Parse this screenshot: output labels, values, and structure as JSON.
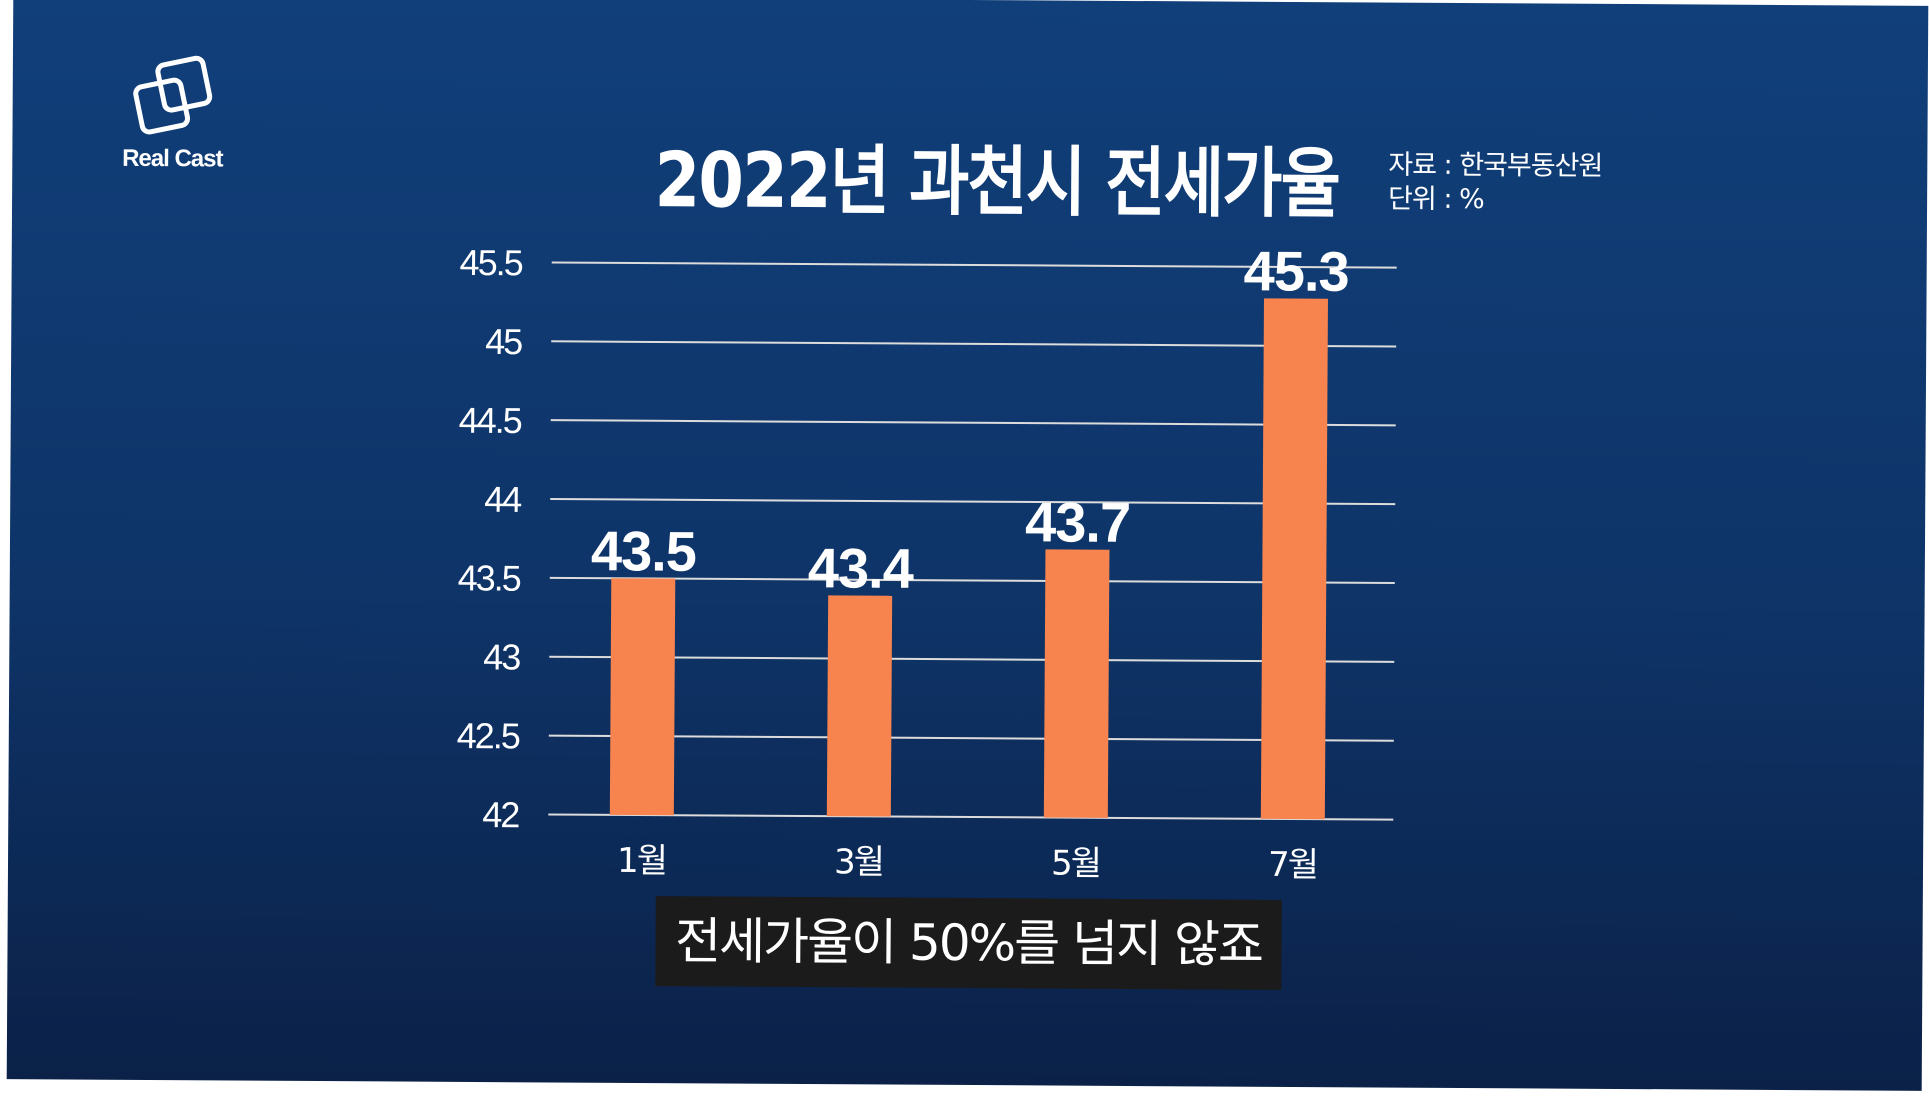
{
  "logo": {
    "text": "Real Cast",
    "icon": "overlapping-squares-icon"
  },
  "source": {
    "source_line": "자료 : 한국부동산원",
    "unit_line": "단위 : %"
  },
  "caption": "전세가율이 50%를 넘지 않죠",
  "colors": {
    "background": "#0e3468",
    "bar": "#f7834e",
    "grid": "#dcdcdc",
    "caption_bg": "#1b1b1b"
  },
  "chart_data": {
    "type": "bar",
    "title": "2022년 과천시 전세가율",
    "categories": [
      "1월",
      "3월",
      "5월",
      "7월"
    ],
    "values": [
      43.5,
      43.4,
      43.7,
      45.3
    ],
    "data_labels": [
      "43.5",
      "43.4",
      "43.7",
      "45.3"
    ],
    "ylim": [
      42,
      45.5
    ],
    "yticks": [
      "42",
      "42.5",
      "43",
      "43.5",
      "44",
      "44.5",
      "45",
      "45.5"
    ],
    "xlabel": "",
    "ylabel": "",
    "grid": true,
    "legend": "none"
  }
}
